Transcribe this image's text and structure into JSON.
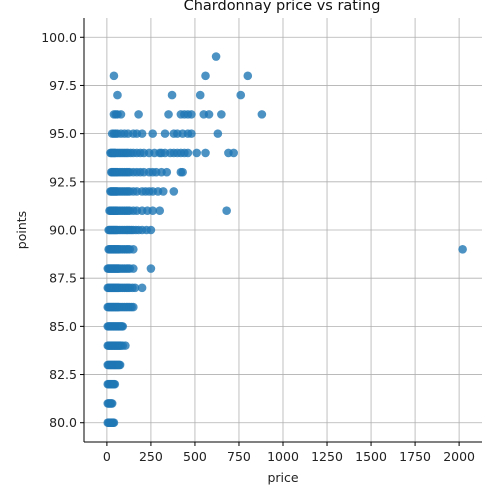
{
  "chart_data": {
    "type": "scatter",
    "title": "Chardonnay price vs rating",
    "xlabel": "price",
    "ylabel": "points",
    "xlim": [
      -130,
      2130
    ],
    "ylim": [
      79.0,
      101.0
    ],
    "xticks": [
      0,
      250,
      500,
      750,
      1000,
      1250,
      1500,
      1750,
      2000
    ],
    "xtick_labels": [
      "0",
      "250",
      "500",
      "750",
      "1000",
      "1250",
      "1500",
      "1750",
      "2000"
    ],
    "yticks": [
      80.0,
      82.5,
      85.0,
      87.5,
      90.0,
      92.5,
      95.0,
      97.5,
      100.0
    ],
    "ytick_labels": [
      "80.0",
      "82.5",
      "85.0",
      "87.5",
      "90.0",
      "92.5",
      "95.0",
      "97.5",
      "100.0"
    ],
    "grid": true,
    "marker_color": "#1f77b4",
    "marker_alpha": 0.8,
    "series": [
      {
        "x": [
          5,
          10,
          15,
          20,
          25,
          30,
          35,
          40,
          5,
          10,
          15,
          20,
          25,
          30,
          5,
          10,
          15,
          20,
          25,
          30,
          35,
          40,
          45,
          5,
          10,
          15,
          20,
          25,
          30,
          35,
          40,
          45,
          50,
          55,
          60,
          65,
          70,
          75,
          5,
          10,
          15,
          20,
          25,
          30,
          35,
          40,
          45,
          50,
          55,
          60,
          65,
          70,
          75,
          80,
          90,
          105,
          5,
          10,
          15,
          20,
          25,
          30,
          35,
          40,
          45,
          50,
          55,
          60,
          65,
          70,
          75,
          80,
          85,
          90,
          5,
          10,
          15,
          20,
          25,
          30,
          35,
          40,
          45,
          50,
          55,
          60,
          65,
          70,
          80,
          90,
          100,
          110,
          120,
          130,
          140,
          150,
          5,
          10,
          15,
          20,
          25,
          30,
          35,
          40,
          45,
          50,
          55,
          60,
          65,
          70,
          80,
          90,
          100,
          110,
          120,
          130,
          145,
          160,
          200,
          5,
          10,
          15,
          20,
          25,
          30,
          35,
          40,
          45,
          50,
          55,
          60,
          65,
          70,
          80,
          90,
          100,
          110,
          120,
          130,
          150,
          250,
          10,
          15,
          20,
          25,
          30,
          35,
          40,
          45,
          50,
          55,
          60,
          65,
          70,
          80,
          90,
          100,
          110,
          120,
          130,
          150,
          2020,
          10,
          15,
          20,
          25,
          30,
          35,
          40,
          45,
          50,
          55,
          60,
          70,
          80,
          90,
          100,
          110,
          120,
          130,
          140,
          150,
          165,
          180,
          200,
          225,
          250,
          15,
          20,
          25,
          30,
          35,
          40,
          45,
          50,
          55,
          60,
          70,
          80,
          90,
          100,
          110,
          120,
          130,
          150,
          170,
          200,
          230,
          260,
          300,
          680,
          20,
          25,
          30,
          35,
          40,
          45,
          50,
          55,
          60,
          70,
          80,
          90,
          100,
          110,
          120,
          130,
          150,
          170,
          200,
          220,
          240,
          260,
          290,
          320,
          380,
          25,
          30,
          35,
          40,
          45,
          50,
          55,
          60,
          70,
          80,
          90,
          100,
          110,
          120,
          130,
          150,
          170,
          190,
          210,
          240,
          260,
          280,
          310,
          340,
          420,
          430,
          20,
          25,
          30,
          35,
          40,
          45,
          50,
          60,
          70,
          80,
          90,
          100,
          110,
          120,
          135,
          150,
          170,
          190,
          210,
          240,
          270,
          300,
          310,
          330,
          360,
          380,
          400,
          420,
          440,
          460,
          510,
          560,
          690,
          720,
          30,
          40,
          50,
          60,
          80,
          100,
          120,
          150,
          170,
          200,
          260,
          330,
          380,
          400,
          430,
          460,
          480,
          630,
          40,
          50,
          60,
          80,
          180,
          350,
          420,
          440,
          460,
          480,
          550,
          580,
          650,
          880,
          60,
          370,
          530,
          760,
          40,
          560,
          800,
          620
        ],
        "y": [
          80,
          80,
          80,
          80,
          80,
          80,
          80,
          80,
          81,
          81,
          81,
          81,
          81,
          81,
          82,
          82,
          82,
          82,
          82,
          82,
          82,
          82,
          82,
          83,
          83,
          83,
          83,
          83,
          83,
          83,
          83,
          83,
          83,
          83,
          83,
          83,
          83,
          83,
          84,
          84,
          84,
          84,
          84,
          84,
          84,
          84,
          84,
          84,
          84,
          84,
          84,
          84,
          84,
          84,
          84,
          84,
          85,
          85,
          85,
          85,
          85,
          85,
          85,
          85,
          85,
          85,
          85,
          85,
          85,
          85,
          85,
          85,
          85,
          85,
          86,
          86,
          86,
          86,
          86,
          86,
          86,
          86,
          86,
          86,
          86,
          86,
          86,
          86,
          86,
          86,
          86,
          86,
          86,
          86,
          86,
          86,
          87,
          87,
          87,
          87,
          87,
          87,
          87,
          87,
          87,
          87,
          87,
          87,
          87,
          87,
          87,
          87,
          87,
          87,
          87,
          87,
          87,
          87,
          87,
          88,
          88,
          88,
          88,
          88,
          88,
          88,
          88,
          88,
          88,
          88,
          88,
          88,
          88,
          88,
          88,
          88,
          88,
          88,
          88,
          88,
          88,
          89,
          89,
          89,
          89,
          89,
          89,
          89,
          89,
          89,
          89,
          89,
          89,
          89,
          89,
          89,
          89,
          89,
          89,
          89,
          89,
          89,
          90,
          90,
          90,
          90,
          90,
          90,
          90,
          90,
          90,
          90,
          90,
          90,
          90,
          90,
          90,
          90,
          90,
          90,
          90,
          90,
          90,
          90,
          90,
          90,
          90,
          91,
          91,
          91,
          91,
          91,
          91,
          91,
          91,
          91,
          91,
          91,
          91,
          91,
          91,
          91,
          91,
          91,
          91,
          91,
          91,
          91,
          91,
          91,
          91,
          92,
          92,
          92,
          92,
          92,
          92,
          92,
          92,
          92,
          92,
          92,
          92,
          92,
          92,
          92,
          92,
          92,
          92,
          92,
          92,
          92,
          92,
          92,
          92,
          92,
          93,
          93,
          93,
          93,
          93,
          93,
          93,
          93,
          93,
          93,
          93,
          93,
          93,
          93,
          93,
          93,
          93,
          93,
          93,
          93,
          93,
          93,
          93,
          93,
          93,
          93,
          94,
          94,
          94,
          94,
          94,
          94,
          94,
          94,
          94,
          94,
          94,
          94,
          94,
          94,
          94,
          94,
          94,
          94,
          94,
          94,
          94,
          94,
          94,
          94,
          94,
          94,
          94,
          94,
          94,
          94,
          94,
          94,
          94,
          94,
          95,
          95,
          95,
          95,
          95,
          95,
          95,
          95,
          95,
          95,
          95,
          95,
          95,
          95,
          95,
          95,
          95,
          95,
          96,
          96,
          96,
          96,
          96,
          96,
          96,
          96,
          96,
          96,
          96,
          96,
          96,
          96,
          97,
          97,
          97,
          97,
          98,
          98,
          98,
          99
        ]
      }
    ]
  }
}
